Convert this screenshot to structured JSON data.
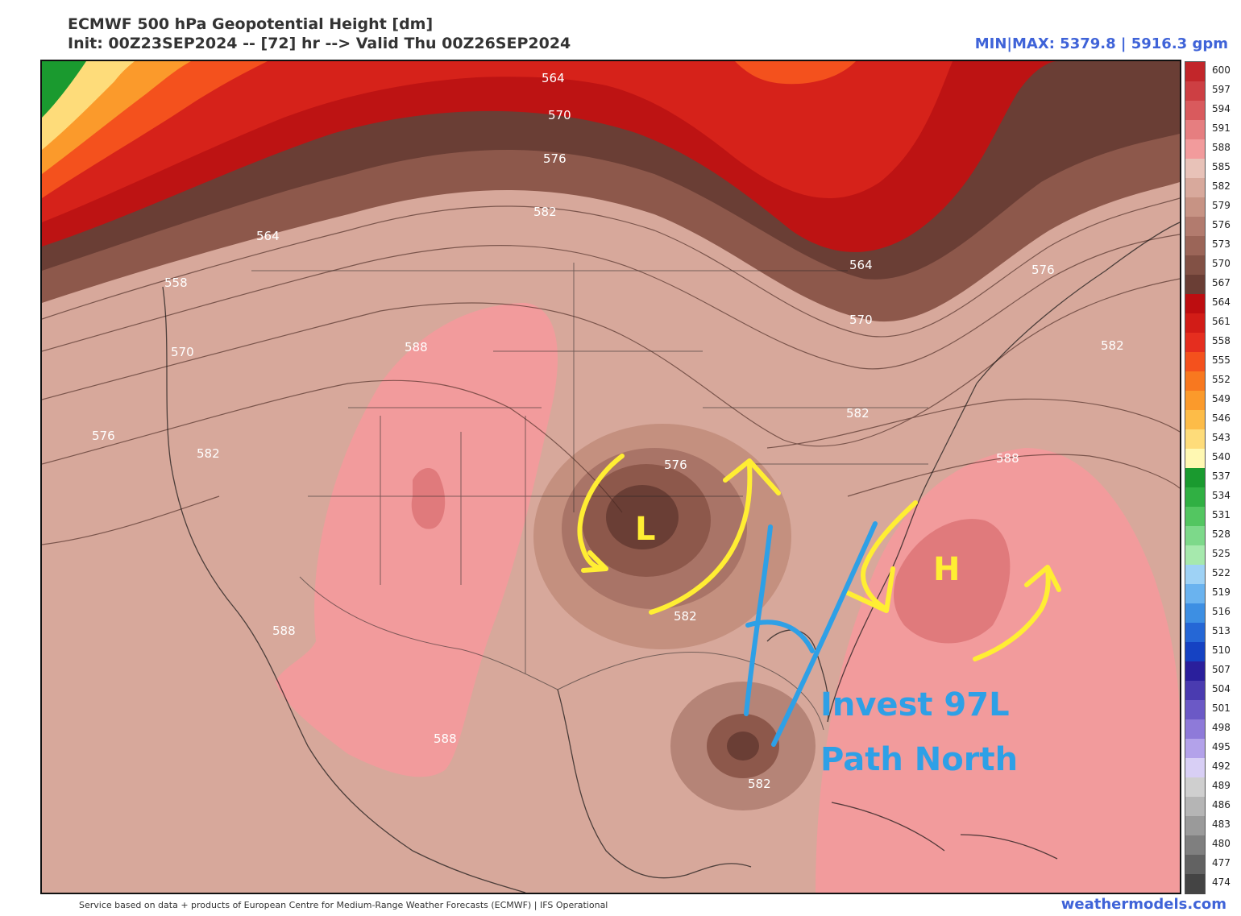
{
  "header": {
    "title": "ECMWF 500 hPa Geopotential Height [dm]",
    "init_line": "Init: 00Z23SEP2024 -- [72] hr --> Valid Thu 00Z26SEP2024",
    "minmax": "MIN|MAX: 5379.8 | 5916.3 gpm"
  },
  "footer": {
    "source": "Service based on data + products of European Centre for Medium-Range Weather Forecasts (ECMWF) | IFS Operational",
    "brand": "weathermodels.com"
  },
  "map": {
    "contour_labels": [
      {
        "text": "564"
      },
      {
        "text": "570"
      },
      {
        "text": "576"
      },
      {
        "text": "582"
      },
      {
        "text": "564"
      },
      {
        "text": "558"
      },
      {
        "text": "570"
      },
      {
        "text": "588"
      },
      {
        "text": "576"
      },
      {
        "text": "582"
      },
      {
        "text": "576"
      },
      {
        "text": "564"
      },
      {
        "text": "570"
      },
      {
        "text": "576"
      },
      {
        "text": "582"
      },
      {
        "text": "582"
      },
      {
        "text": "588"
      },
      {
        "text": "582"
      },
      {
        "text": "588"
      },
      {
        "text": "588"
      },
      {
        "text": "582"
      }
    ],
    "annotations": {
      "low_label": "L",
      "high_label": "H",
      "invest_line1": "Invest 97L",
      "invest_line2": "Path North"
    },
    "colors": {
      "annotation_yellow": "#ffee33",
      "annotation_blue": "#2ea0e6"
    }
  },
  "colorbar": {
    "labels": [
      "600",
      "597",
      "594",
      "591",
      "588",
      "585",
      "582",
      "579",
      "576",
      "573",
      "570",
      "567",
      "564",
      "561",
      "558",
      "555",
      "552",
      "549",
      "546",
      "543",
      "540",
      "537",
      "534",
      "531",
      "528",
      "525",
      "522",
      "519",
      "516",
      "513",
      "510",
      "507",
      "504",
      "501",
      "498",
      "495",
      "492",
      "489",
      "486",
      "483",
      "480",
      "477",
      "474"
    ],
    "colors": [
      "#c2262a",
      "#cd3f43",
      "#d95a5d",
      "#e67e80",
      "#f29b9c",
      "#e8c2b8",
      "#d8a99c",
      "#c79384",
      "#b27b6e",
      "#9b6558",
      "#825145",
      "#6a3e35",
      "#bd0d10",
      "#d21c17",
      "#e52e1f",
      "#f4511d",
      "#f8781f",
      "#fb9a2b",
      "#fdbc48",
      "#fedc7a",
      "#fff8b2",
      "#1a9a2f",
      "#30b043",
      "#53c661",
      "#7dd98a",
      "#a6e9ad",
      "#9ed2f5",
      "#6ab3ef",
      "#3d8fe3",
      "#2567d6",
      "#1542c3",
      "#2a1f9c",
      "#4a3bb0",
      "#6b59c6",
      "#8e7ad9",
      "#b3a2ea",
      "#d8cff5",
      "#cfcfcf",
      "#b5b5b5",
      "#9a9a9a",
      "#7f7f7f",
      "#626262",
      "#444444"
    ]
  }
}
